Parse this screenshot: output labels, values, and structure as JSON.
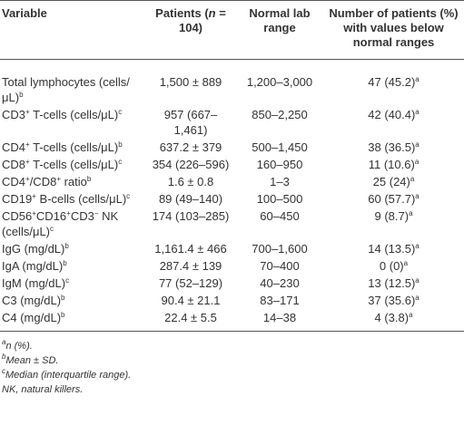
{
  "table": {
    "header": [
      [
        "Variable"
      ],
      [
        "Patients (",
        {
          "i": "n"
        },
        " = 104)"
      ],
      [
        "Normal lab range"
      ],
      [
        "Number of patients (%) with values below normal ranges"
      ]
    ],
    "rows": [
      [
        [
          "Total lymphocytes (cells/μL)",
          {
            "sup": "b"
          }
        ],
        [
          "1,500 ± 889"
        ],
        [
          "1,200–3,000"
        ],
        [
          "47 (45.2)",
          {
            "sup": "a"
          }
        ]
      ],
      [
        [
          "CD3",
          {
            "sup": "+"
          },
          " T-cells (cells/μL)",
          {
            "sup": "c"
          }
        ],
        [
          "957 (667–1,461)"
        ],
        [
          "850–2,250"
        ],
        [
          "42 (40.4)",
          {
            "sup": "a"
          }
        ]
      ],
      [
        [
          "CD4",
          {
            "sup": "+"
          },
          " T-cells (cells/μL)",
          {
            "sup": "b"
          }
        ],
        [
          "637.2 ± 379"
        ],
        [
          "500–1,450"
        ],
        [
          "38 (36.5)",
          {
            "sup": "a"
          }
        ]
      ],
      [
        [
          "CD8",
          {
            "sup": "+"
          },
          " T-cells (cells/μL)",
          {
            "sup": "c"
          }
        ],
        [
          "354 (226–596)"
        ],
        [
          "160–950"
        ],
        [
          "11 (10.6)",
          {
            "sup": "a"
          }
        ]
      ],
      [
        [
          "CD4",
          {
            "sup": "+"
          },
          "/CD8",
          {
            "sup": "+"
          },
          " ratio",
          {
            "sup": "b"
          }
        ],
        [
          "1.6 ± 0.8"
        ],
        [
          "1–3"
        ],
        [
          "25 (24)",
          {
            "sup": "a"
          }
        ]
      ],
      [
        [
          "CD19",
          {
            "sup": "+"
          },
          " B-cells (cells/μL)",
          {
            "sup": "c"
          }
        ],
        [
          "89 (49–140)"
        ],
        [
          "100–500"
        ],
        [
          "60 (57.7)",
          {
            "sup": "a"
          }
        ]
      ],
      [
        [
          "CD56",
          {
            "sup": "+"
          },
          "CD16",
          {
            "sup": "+"
          },
          "CD3",
          {
            "sup": "−"
          },
          " NK (cells/μL)",
          {
            "sup": "c"
          }
        ],
        [
          "174 (103–285)"
        ],
        [
          "60–450"
        ],
        [
          "9 (8.7)",
          {
            "sup": "a"
          }
        ]
      ],
      [
        [
          "IgG (mg/dL)",
          {
            "sup": "b"
          }
        ],
        [
          "1,161.4 ± 466"
        ],
        [
          "700–1,600"
        ],
        [
          "14 (13.5)",
          {
            "sup": "a"
          }
        ]
      ],
      [
        [
          "IgA (mg/dL)",
          {
            "sup": "b"
          }
        ],
        [
          "287.4 ± 139"
        ],
        [
          "70–400"
        ],
        [
          "0 (0)",
          {
            "sup": "a"
          }
        ]
      ],
      [
        [
          "IgM (mg/dL)",
          {
            "sup": "c"
          }
        ],
        [
          "77 (52–129)"
        ],
        [
          "40–230"
        ],
        [
          "13 (12.5)",
          {
            "sup": "a"
          }
        ]
      ],
      [
        [
          "C3 (mg/dL)",
          {
            "sup": "b"
          }
        ],
        [
          "90.4 ± 21.1"
        ],
        [
          "83–171"
        ],
        [
          "37 (35.6)",
          {
            "sup": "a"
          }
        ]
      ],
      [
        [
          "C4 (mg/dL)",
          {
            "sup": "b"
          }
        ],
        [
          "22.4 ± 5.5"
        ],
        [
          "14–38"
        ],
        [
          "4 (3.8)",
          {
            "sup": "a"
          }
        ]
      ]
    ],
    "footnotes": [
      [
        {
          "sup": "a"
        },
        "n (%)."
      ],
      [
        {
          "sup": "b"
        },
        "Mean ± SD."
      ],
      [
        {
          "sup": "c"
        },
        "Median (interquartile range)."
      ],
      [
        "NK, natural killers."
      ]
    ]
  }
}
